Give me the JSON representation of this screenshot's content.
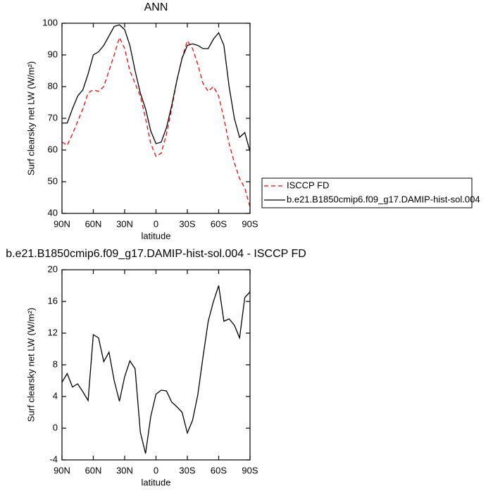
{
  "chart_data": [
    {
      "type": "line",
      "title": "ANN",
      "xlabel": "latitude",
      "ylabel": "Surf clearsky net LW (W/m²)",
      "x": [
        90,
        85,
        80,
        75,
        70,
        65,
        60,
        55,
        50,
        45,
        40,
        35,
        30,
        25,
        20,
        15,
        10,
        5,
        0,
        -5,
        -10,
        -15,
        -20,
        -25,
        -30,
        -35,
        -40,
        -45,
        -50,
        -55,
        -60,
        -65,
        -70,
        -75,
        -80,
        -85,
        -90
      ],
      "series": [
        {
          "name": "ISCCP FD",
          "color": "#ff0000",
          "dashed": true,
          "values": [
            62.5,
            61.5,
            65,
            69,
            73,
            78,
            79,
            78.5,
            80,
            85,
            90,
            95.5,
            92,
            85,
            81,
            77,
            70,
            62,
            58,
            59,
            65,
            73,
            82,
            89,
            94.5,
            92,
            87,
            81,
            78.5,
            80,
            77,
            70,
            62,
            56,
            51,
            48,
            42
          ]
        },
        {
          "name": "b.e21.B1850cmip6.f09_g17.DAMIP-hist-sol.004",
          "color": "#000000",
          "dashed": false,
          "values": [
            68.5,
            68.5,
            73,
            77,
            79,
            84,
            90,
            91,
            93,
            96,
            99,
            99.5,
            98,
            93,
            85,
            78,
            73,
            66,
            62,
            62.5,
            67,
            74,
            82,
            89,
            93,
            93.5,
            93,
            92,
            92,
            95,
            97,
            93,
            80,
            70,
            64,
            65.5,
            59.5
          ]
        }
      ],
      "xlim": [
        90,
        -90
      ],
      "xticks": [
        {
          "value": 90,
          "label": "90N"
        },
        {
          "value": 60,
          "label": "60N"
        },
        {
          "value": 30,
          "label": "30N"
        },
        0,
        {
          "value": -30,
          "label": "30S"
        },
        {
          "value": -60,
          "label": "60S"
        },
        {
          "value": -90,
          "label": "90S"
        }
      ],
      "ylim": [
        40,
        100
      ],
      "yticks": [
        40,
        50,
        60,
        70,
        80,
        90,
        100
      ],
      "legend": "right"
    },
    {
      "type": "line",
      "title": "b.e21.B1850cmip6.f09_g17.DAMIP-hist-sol.004 - ISCCP FD",
      "xlabel": "latitude",
      "ylabel": "Surf clearsky net LW (W/m²)",
      "x": [
        90,
        85,
        80,
        75,
        70,
        65,
        60,
        55,
        50,
        45,
        40,
        35,
        30,
        25,
        20,
        15,
        10,
        5,
        0,
        -5,
        -10,
        -15,
        -20,
        -25,
        -30,
        -35,
        -40,
        -45,
        -50,
        -55,
        -60,
        -65,
        -70,
        -75,
        -80,
        -85,
        -90
      ],
      "series": [
        {
          "color": "#000000",
          "dashed": false,
          "values": [
            5.8,
            6.9,
            5.2,
            5.6,
            4.6,
            3.5,
            11.8,
            11.4,
            8.4,
            9.6,
            6,
            3.4,
            6.5,
            8.5,
            7.5,
            -0.5,
            -3.2,
            1.5,
            4.3,
            4.8,
            4.7,
            3.3,
            2.7,
            2,
            -0.6,
            1,
            4.2,
            9,
            13.5,
            16,
            18,
            13.5,
            13.8,
            13,
            11.4,
            16.5,
            17.2
          ]
        }
      ],
      "xlim": [
        90,
        -90
      ],
      "xticks": [
        {
          "value": 90,
          "label": "90N"
        },
        {
          "value": 60,
          "label": "60N"
        },
        {
          "value": 30,
          "label": "30N"
        },
        0,
        {
          "value": -30,
          "label": "30S"
        },
        {
          "value": -60,
          "label": "60S"
        },
        {
          "value": -90,
          "label": "90S"
        }
      ],
      "ylim": [
        -4,
        20
      ],
      "yticks": [
        -4,
        0,
        4,
        8,
        12,
        16,
        20
      ]
    }
  ]
}
